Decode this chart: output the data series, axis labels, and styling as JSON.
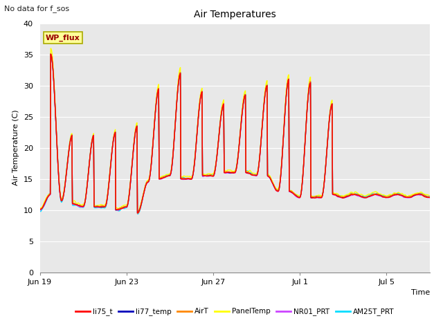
{
  "title": "Air Temperatures",
  "subtitle": "No data for f_sos",
  "xlabel": "Time",
  "ylabel": "Air Temperature (C)",
  "ylim": [
    0,
    40
  ],
  "yticks": [
    0,
    5,
    10,
    15,
    20,
    25,
    30,
    35,
    40
  ],
  "xtick_labels": [
    "Jun 19",
    "Jun 23",
    "Jun 27",
    "Jul 1",
    "Jul 5"
  ],
  "xtick_positions": [
    0,
    4,
    8,
    12,
    16
  ],
  "wp_flux_label": "WP_flux",
  "legend_entries": [
    "li75_t",
    "li77_temp",
    "AirT",
    "PanelTemp",
    "NR01_PRT",
    "AM25T_PRT"
  ],
  "legend_colors": [
    "#ff0000",
    "#0000bb",
    "#ff8800",
    "#ffff00",
    "#cc44ff",
    "#00ddff"
  ],
  "background_color": "#e8e8e8",
  "grid_color": "#ffffff",
  "line_width": 1.0,
  "day_maxes": [
    12.5,
    35.0,
    22.0,
    11.0,
    22.0,
    10.5,
    22.5,
    10.0,
    23.5,
    9.5,
    29.5,
    15.0,
    32.0,
    15.0,
    29.0,
    15.5,
    27.0,
    16.0,
    28.5,
    16.0,
    30.0,
    15.5,
    31.0,
    13.0,
    30.5,
    12.0,
    27.0,
    12.5
  ],
  "day_mins": [
    10.0,
    12.0,
    11.5,
    10.5,
    10.5,
    10.0,
    10.5,
    9.5,
    10.5,
    9.0,
    14.5,
    15.0,
    15.5,
    15.5,
    15.0,
    15.5,
    15.5,
    15.5,
    16.0,
    15.5,
    15.5,
    15.5,
    13.0,
    12.5,
    12.0,
    12.0,
    12.0,
    12.0
  ]
}
